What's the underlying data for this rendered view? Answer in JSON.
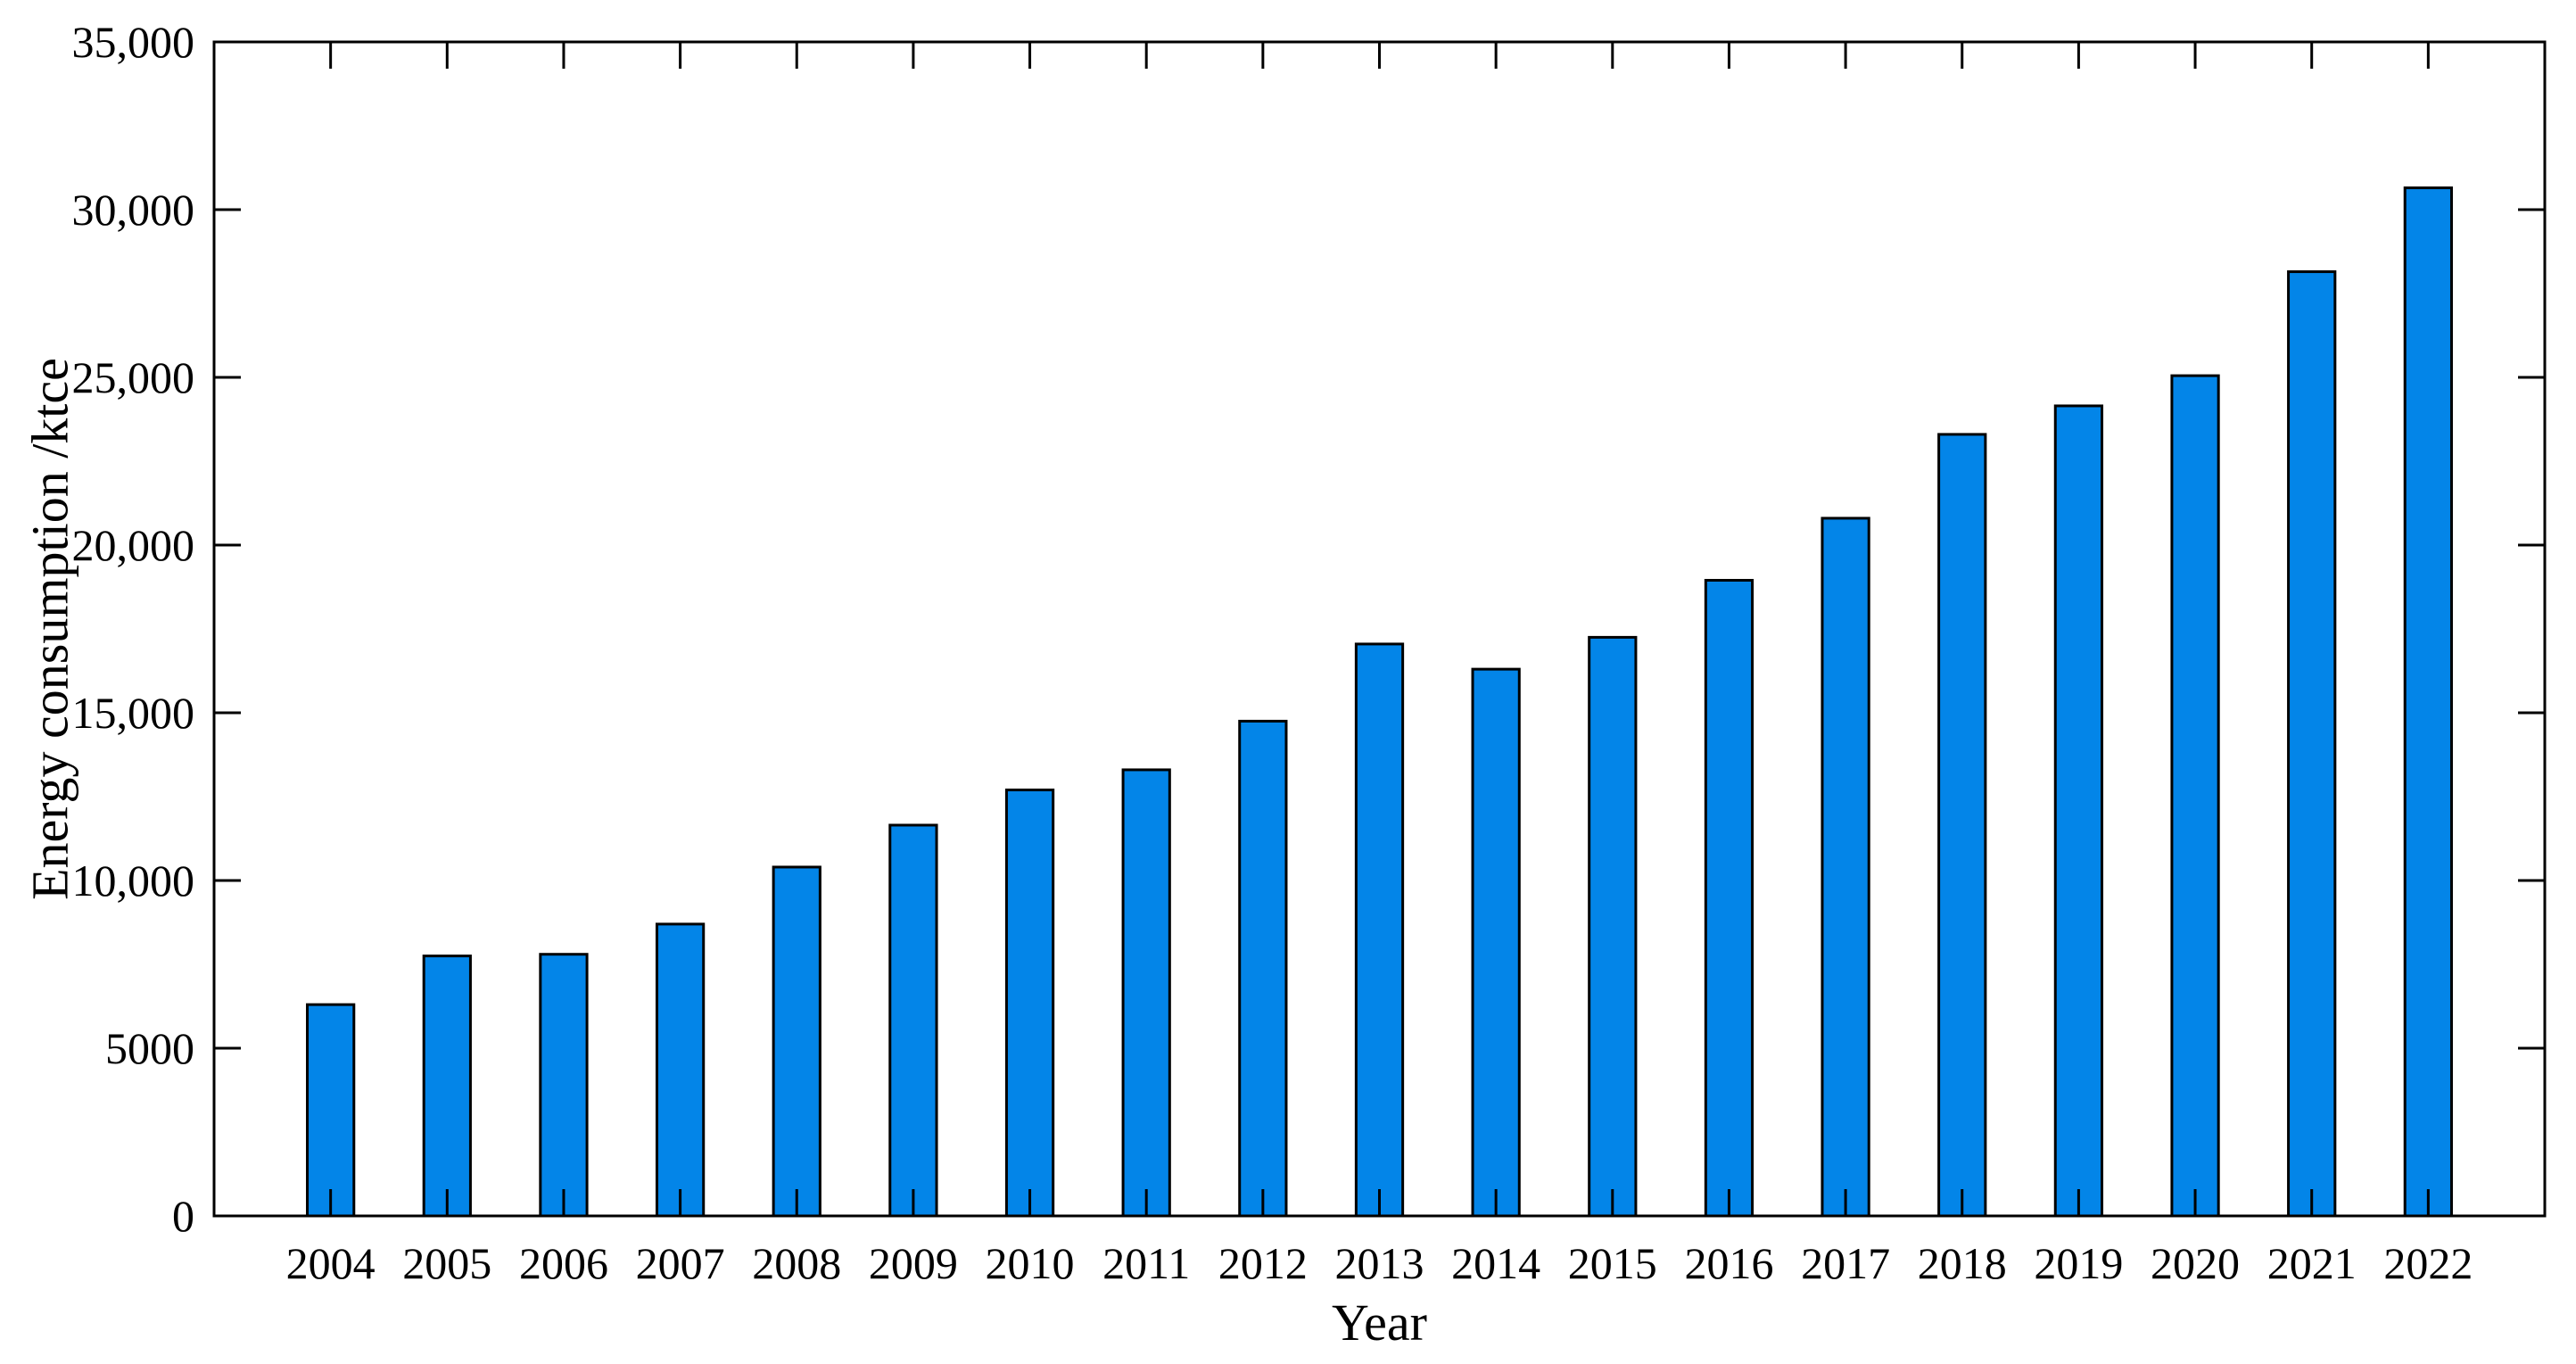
{
  "chart_data": {
    "type": "bar",
    "xlabel": "Year",
    "ylabel": "Energy consumption /ktce",
    "categories": [
      "2004",
      "2005",
      "2006",
      "2007",
      "2008",
      "2009",
      "2010",
      "2011",
      "2012",
      "2013",
      "2014",
      "2015",
      "2016",
      "2017",
      "2018",
      "2019",
      "2020",
      "2021",
      "2022"
    ],
    "values": [
      6300,
      7750,
      7800,
      8700,
      10400,
      11650,
      12700,
      13300,
      14750,
      17050,
      16300,
      17250,
      18950,
      20800,
      23300,
      24150,
      25050,
      28150,
      30650
    ],
    "ylim": [
      0,
      35000
    ],
    "yticks": [
      0,
      5000,
      10000,
      15000,
      20000,
      25000,
      30000,
      35000
    ],
    "ytick_labels": [
      "0",
      "5000",
      "10,000",
      "15,000",
      "20,000",
      "25,000",
      "30,000",
      "35,000"
    ],
    "grid": false,
    "bar_color": "#0385E8",
    "bar_edge_color": "#000000"
  }
}
